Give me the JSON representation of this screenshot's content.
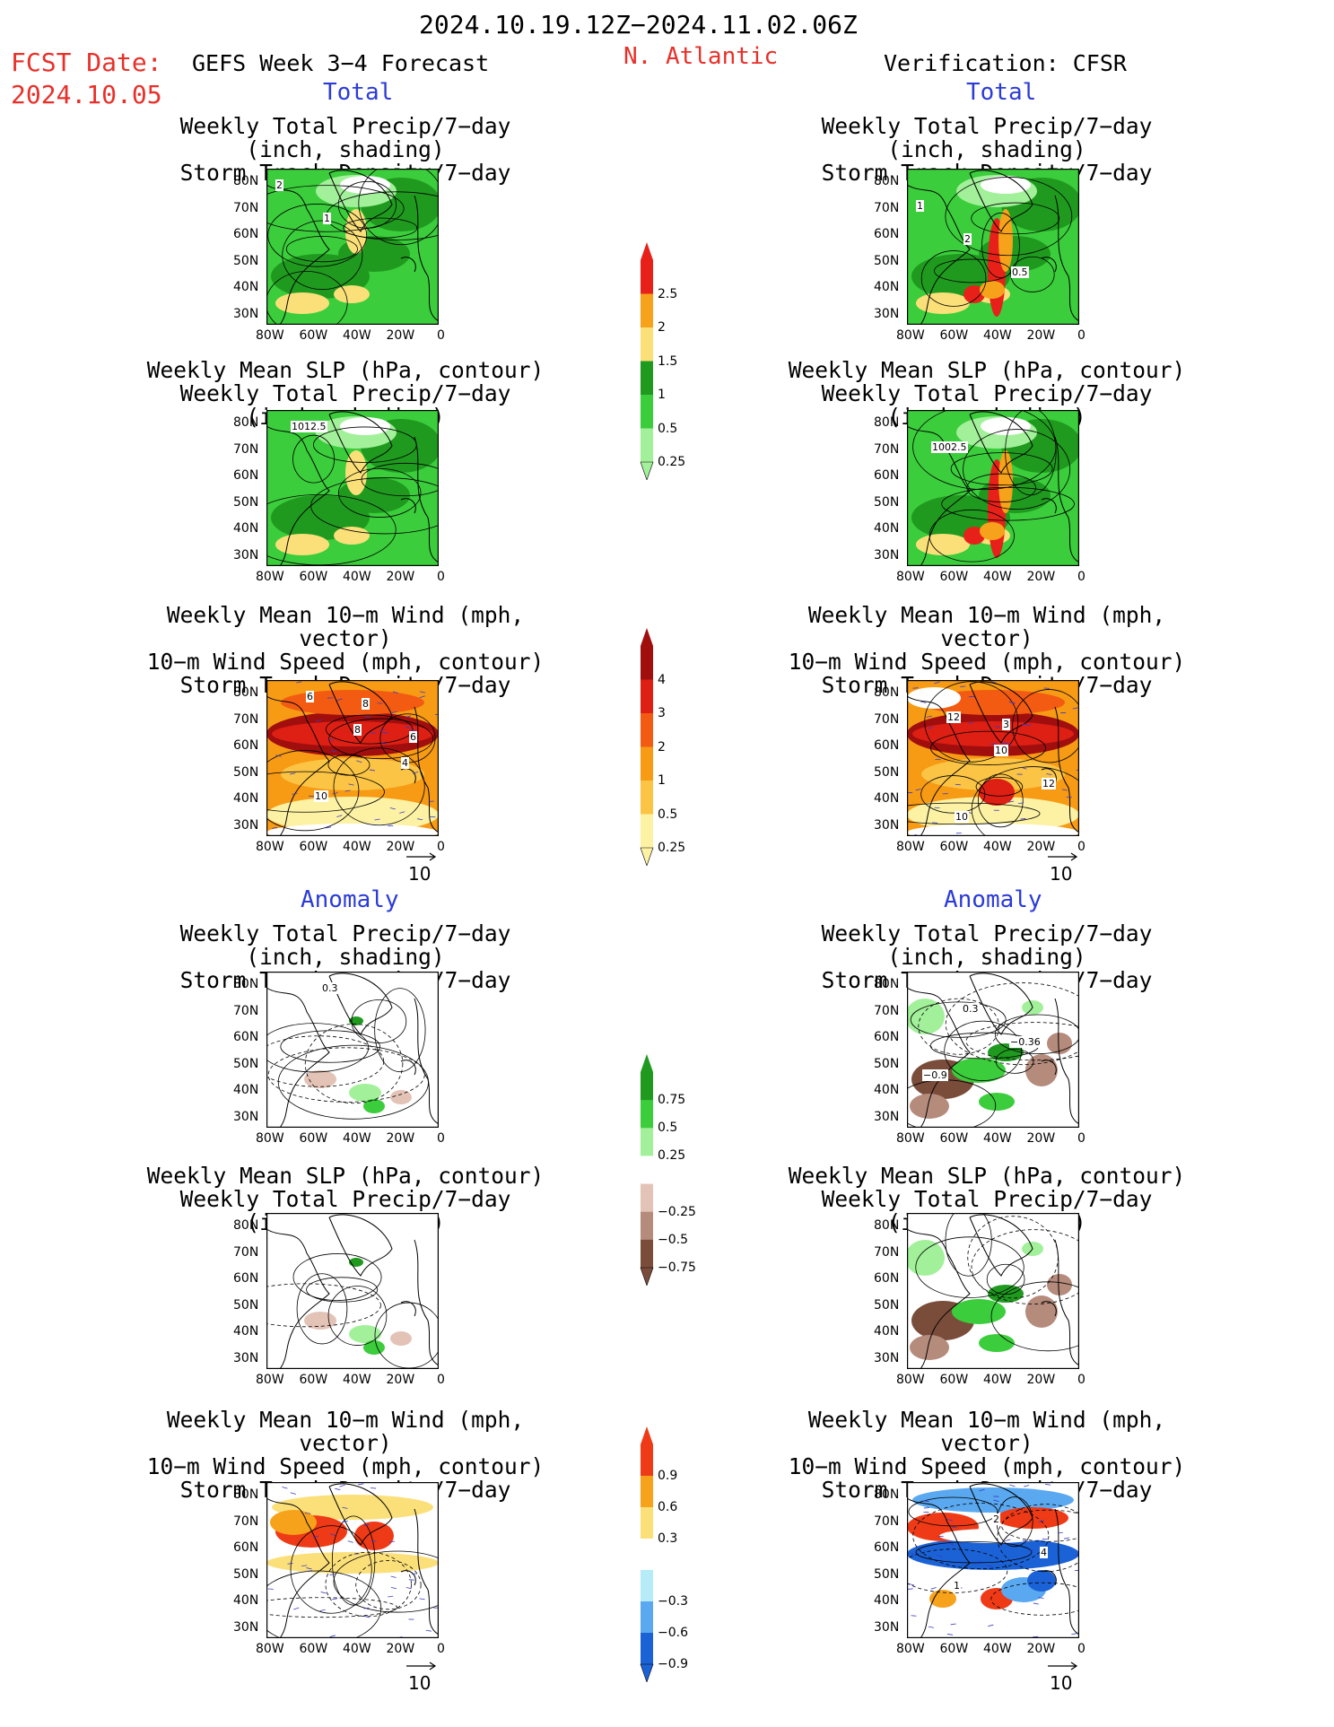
{
  "header": {
    "date_range": "2024.10.19.12Z−2024.11.02.06Z",
    "fcst_label": "FCST Date:",
    "fcst_date": "2024.10.05",
    "model_title": "GEFS Week 3−4 Forecast",
    "region": "N. Atlantic",
    "verification": "Verification: CFSR"
  },
  "sections": {
    "total": "Total",
    "anomaly": "Anomaly"
  },
  "titles": {
    "precip_storm": [
      "Weekly Total Precip/7−day (inch, shading)",
      "Storm Track Density/7−day (contour)"
    ],
    "slp_precip": [
      "Weekly Mean SLP (hPa, contour)",
      "Weekly Total Precip/7−day (inch, shading)"
    ],
    "wind_storm": [
      "Weekly Mean 10−m Wind (mph, vector)",
      "10−m Wind Speed (mph, contour)",
      "Storm Track Density/7−day (shading)"
    ]
  },
  "axes": {
    "lon_labels": [
      "80W",
      "60W",
      "40W",
      "20W",
      "0"
    ],
    "lat_labels": [
      "80N",
      "70N",
      "60N",
      "50N",
      "40N",
      "30N"
    ]
  },
  "contour_labels": {
    "left_total_precip": [
      "2",
      "1"
    ],
    "right_total_precip": [
      "1",
      "2",
      "0.5"
    ],
    "left_total_slp": [
      "1012.5"
    ],
    "right_total_slp": [
      "1002.5"
    ],
    "left_total_wind": [
      "6",
      "8",
      "4",
      "10",
      "8",
      "6"
    ],
    "right_total_wind": [
      "12",
      "10",
      "12",
      "10",
      "3"
    ],
    "left_anom_precip": [
      "0.3"
    ],
    "right_anom_precip": [
      "0.3",
      "−0.36",
      "−0.9"
    ],
    "right_anom_wind": [
      "2",
      "4",
      "1"
    ]
  },
  "vector_ref": "10",
  "colorbars": {
    "precip_total": {
      "labels": [
        "2.5",
        "2",
        "1.5",
        "1",
        "0.5",
        "0.25"
      ],
      "colors": [
        "#e8201a",
        "#f7a21b",
        "#fbe07a",
        "#1f9a1f",
        "#3bcd3b",
        "#a2f09a"
      ]
    },
    "storm_total": {
      "labels": [
        "4",
        "3",
        "2",
        "1",
        "0.5",
        "0.25"
      ],
      "colors": [
        "#a10e0e",
        "#dd1f14",
        "#f25b11",
        "#f79a14",
        "#fbc445",
        "#fdf2a4"
      ]
    },
    "precip_anom": {
      "labels": [
        "0.75",
        "0.5",
        "0.25",
        "−0.25",
        "−0.5",
        "−0.75"
      ],
      "colors": [
        "#1f9a1f",
        "#3bcd3b",
        "#a2f09a",
        "#ffffff",
        "#e4c3b7",
        "#b58b7c",
        "#7a4d3b"
      ]
    },
    "storm_anom": {
      "labels": [
        "0.9",
        "0.6",
        "0.3",
        "−0.3",
        "−0.6",
        "−0.9"
      ],
      "colors": [
        "#ee3a16",
        "#f7a21b",
        "#fbe07a",
        "#ffffff",
        "#b5ecf7",
        "#5aa8f0",
        "#1b62d6"
      ]
    }
  }
}
